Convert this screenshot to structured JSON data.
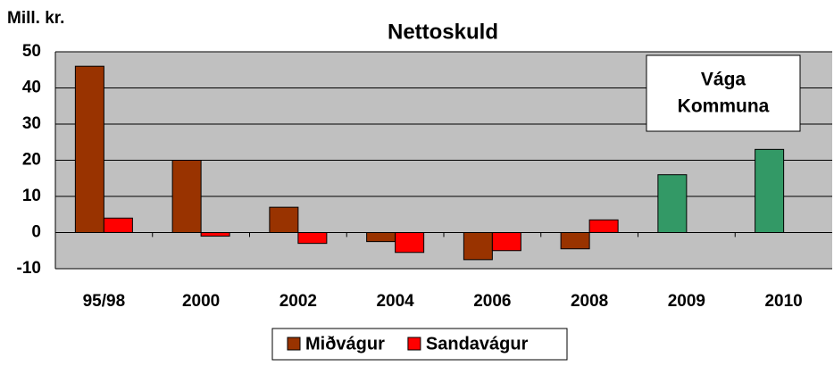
{
  "chart_data": {
    "type": "bar",
    "title": "Nettoskuld",
    "y_label": "Mill. kr.",
    "annotation": [
      "Vága",
      "Kommuna"
    ],
    "categories": [
      "95/98",
      "2000",
      "2002",
      "2004",
      "2006",
      "2008",
      "2009",
      "2010"
    ],
    "series": [
      {
        "name": "Miðvágur",
        "color": "#993300",
        "colors": [
          "#993300",
          "#993300",
          "#993300",
          "#993300",
          "#993300",
          "#993300",
          "#339966",
          "#339966"
        ],
        "values": [
          46,
          20,
          7,
          -2.5,
          -7.5,
          -4.5,
          16,
          23
        ]
      },
      {
        "name": "Sandavágur",
        "color": "#ff0000",
        "values": [
          4,
          -1,
          -3,
          -5.5,
          -5,
          3.5,
          null,
          null
        ]
      }
    ],
    "ylim": [
      -10,
      50
    ],
    "yticks": [
      -10,
      0,
      10,
      20,
      30,
      40,
      50
    ],
    "grid": true
  }
}
